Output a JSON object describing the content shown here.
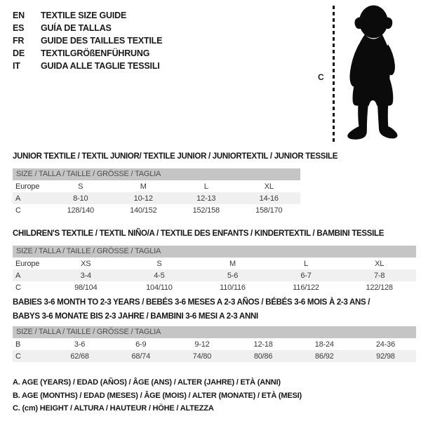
{
  "languages": [
    {
      "code": "EN",
      "text": "TEXTILE SIZE GUIDE"
    },
    {
      "code": "ES",
      "text": "GUÍA DE TALLAS"
    },
    {
      "code": "FR",
      "text": "GUIDE DES TAILLES TEXTILE"
    },
    {
      "code": "DE",
      "text": "TEXTILGRÖßENFÜHRUNG"
    },
    {
      "code": "IT",
      "text": "GUIDA ALLE TAGLIE TESSILI"
    }
  ],
  "figure": {
    "label": "C",
    "description": "toddler-silhouette"
  },
  "tables": [
    {
      "title_lines": [
        "JUNIOR TEXTILE / TEXTIL JUNIOR/ TEXTILE JUNIOR / JUNIORTEXTIL / JUNIOR TESSILE"
      ],
      "header": "SIZE / TALLA / TAILLE / GRÖSSE / TAGLIA",
      "rows": [
        {
          "label": "Europe",
          "values": [
            "S",
            "M",
            "L",
            "XL"
          ],
          "shaded": false
        },
        {
          "label": "A",
          "values": [
            "8-10",
            "10-12",
            "12-13",
            "14-16"
          ],
          "shaded": true
        },
        {
          "label": "C",
          "values": [
            "128/140",
            "140/152",
            "152/158",
            "158/170"
          ],
          "shaded": false
        }
      ]
    },
    {
      "title_lines": [
        "CHILDREN'S TEXTILE / TEXTIL NIÑO/A / TEXTILE DES ENFANTS / KINDERTEXTIL / BAMBINI TESSILE"
      ],
      "header": "SIZE / TALLA / TAILLE / GRÖSSE / TAGLIA",
      "rows": [
        {
          "label": "Europe",
          "values": [
            "XS",
            "S",
            "M",
            "L",
            "XL"
          ],
          "shaded": false
        },
        {
          "label": "A",
          "values": [
            "3-4",
            "4-5",
            "5-6",
            "6-7",
            "7-8"
          ],
          "shaded": true
        },
        {
          "label": "C",
          "values": [
            "98/104",
            "104/110",
            "110/116",
            "116/122",
            "122/128"
          ],
          "shaded": false
        }
      ]
    },
    {
      "title_lines": [
        "BABIES 3-6 MONTH TO 2-3 YEARS / BEBÉS 3-6 MESES A 2-3 AÑOS / BÉBÉS 3-6 MOIS À 2-3 ANS /",
        "BABYS 3-6 MONATE BIS 2-3 JAHRE / BAMBINI 3-6 MESI A 2-3 ANNI"
      ],
      "header": "SIZE / TALLA / TAILLE / GRÖSSE / TAGLIA",
      "rows": [
        {
          "label": "B",
          "values": [
            "3-6",
            "6-9",
            "9-12",
            "12-18",
            "18-24",
            "24-36"
          ],
          "shaded": false
        },
        {
          "label": "C",
          "values": [
            "62/68",
            "68/74",
            "74/80",
            "80/86",
            "86/92",
            "92/98"
          ],
          "shaded": true
        }
      ]
    }
  ],
  "notes": [
    "A. AGE (YEARS) / EDAD (AÑOS) / ÂGE (ANS) / ALTER (JAHRE) / ETÀ (ANNI)",
    "B. AGE (MONTHS) / EDAD (MESES) / ÂGE (MOIS) / ALTER (MONATE) / ETÀ (MESI)",
    "C. (cm) HEIGHT / ALTURA / HAUTEUR / HÖHE / ALTEZZA"
  ],
  "colors": {
    "header_bar": "#c5c5c5",
    "row_shaded": "#f0f0f0",
    "silhouette": "#0b0b0b",
    "text": "#1a1a1a"
  }
}
